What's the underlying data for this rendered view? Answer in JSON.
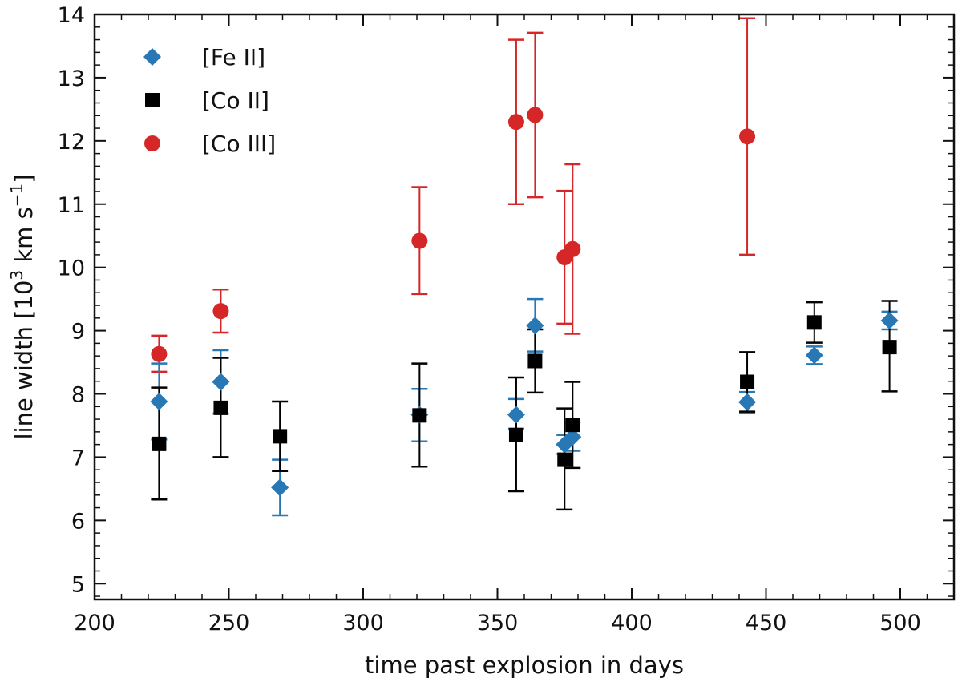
{
  "chart_data": {
    "type": "scatter",
    "title": "",
    "xlabel": "time past explosion in days",
    "ylabel": "line width [10³ km s⁻¹]",
    "ylabel_parts": {
      "prefix": "line width [10",
      "exp": "3",
      "mid": " km s",
      "exp2": "−1",
      "suffix": "]"
    },
    "xlim": [
      200,
      520
    ],
    "ylim": [
      4.75,
      14
    ],
    "xticks": [
      200,
      250,
      300,
      350,
      400,
      450,
      500
    ],
    "yticks": [
      5,
      6,
      7,
      8,
      9,
      10,
      11,
      12,
      13,
      14
    ],
    "legend_position": "top-left",
    "series": [
      {
        "name": "[Fe II]",
        "color": "#2878b5",
        "marker": "diamond",
        "points": [
          {
            "x": 224,
            "y": 7.88,
            "lo": 7.28,
            "hi": 8.48
          },
          {
            "x": 247,
            "y": 8.19,
            "lo": 7.69,
            "hi": 8.69
          },
          {
            "x": 269,
            "y": 6.52,
            "lo": 6.08,
            "hi": 6.96
          },
          {
            "x": 321,
            "y": 7.67,
            "lo": 7.25,
            "hi": 8.08
          },
          {
            "x": 357,
            "y": 7.67,
            "lo": 7.45,
            "hi": 7.92
          },
          {
            "x": 364,
            "y": 9.08,
            "lo": 8.67,
            "hi": 9.5
          },
          {
            "x": 375,
            "y": 7.2,
            "lo": 7.05,
            "hi": 7.35
          },
          {
            "x": 378,
            "y": 7.32,
            "lo": 7.1,
            "hi": 7.55
          },
          {
            "x": 443,
            "y": 7.87,
            "lo": 7.7,
            "hi": 8.03
          },
          {
            "x": 468,
            "y": 8.61,
            "lo": 8.47,
            "hi": 8.75
          },
          {
            "x": 496,
            "y": 9.16,
            "lo": 9.02,
            "hi": 9.3
          }
        ]
      },
      {
        "name": "[Co II]",
        "color": "#000000",
        "marker": "square",
        "points": [
          {
            "x": 224,
            "y": 7.21,
            "lo": 6.33,
            "hi": 8.1
          },
          {
            "x": 247,
            "y": 7.78,
            "lo": 7.0,
            "hi": 8.57
          },
          {
            "x": 269,
            "y": 7.33,
            "lo": 6.78,
            "hi": 7.88
          },
          {
            "x": 321,
            "y": 7.66,
            "lo": 6.85,
            "hi": 8.48
          },
          {
            "x": 357,
            "y": 7.35,
            "lo": 6.46,
            "hi": 8.26
          },
          {
            "x": 364,
            "y": 8.52,
            "lo": 8.02,
            "hi": 9.02
          },
          {
            "x": 375,
            "y": 6.96,
            "lo": 6.17,
            "hi": 7.77
          },
          {
            "x": 378,
            "y": 7.51,
            "lo": 6.83,
            "hi": 8.19
          },
          {
            "x": 443,
            "y": 8.19,
            "lo": 7.72,
            "hi": 8.66
          },
          {
            "x": 468,
            "y": 9.13,
            "lo": 8.81,
            "hi": 9.45
          },
          {
            "x": 496,
            "y": 8.74,
            "lo": 8.04,
            "hi": 9.47
          }
        ]
      },
      {
        "name": "[Co III]",
        "color": "#d62728",
        "marker": "circle",
        "points": [
          {
            "x": 224,
            "y": 8.63,
            "lo": 8.35,
            "hi": 8.92
          },
          {
            "x": 247,
            "y": 9.31,
            "lo": 8.97,
            "hi": 9.65
          },
          {
            "x": 321,
            "y": 10.42,
            "lo": 9.58,
            "hi": 11.27
          },
          {
            "x": 357,
            "y": 12.3,
            "lo": 11.0,
            "hi": 13.6
          },
          {
            "x": 364,
            "y": 12.41,
            "lo": 11.11,
            "hi": 13.71
          },
          {
            "x": 375,
            "y": 10.16,
            "lo": 9.11,
            "hi": 11.21
          },
          {
            "x": 378,
            "y": 10.29,
            "lo": 8.95,
            "hi": 11.63
          },
          {
            "x": 443,
            "y": 12.07,
            "lo": 10.2,
            "hi": 13.94
          }
        ]
      }
    ]
  }
}
